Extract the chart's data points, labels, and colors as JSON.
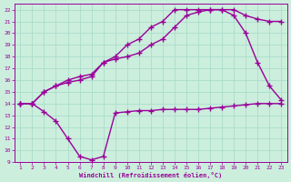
{
  "xlabel": "Windchill (Refroidissement éolien,°C)",
  "bg_color": "#cceedd",
  "line_color": "#990099",
  "grid_color": "#aaddcc",
  "xlim": [
    0.5,
    23.5
  ],
  "ylim": [
    9,
    22.5
  ],
  "xticks": [
    1,
    2,
    3,
    4,
    5,
    6,
    7,
    8,
    9,
    10,
    11,
    12,
    13,
    14,
    15,
    16,
    17,
    18,
    19,
    20,
    21,
    22,
    23
  ],
  "yticks": [
    9,
    10,
    11,
    12,
    13,
    14,
    15,
    16,
    17,
    18,
    19,
    20,
    21,
    22
  ],
  "line1_x": [
    1,
    2,
    3,
    4,
    5,
    6,
    7,
    8,
    9,
    10,
    11,
    12,
    13,
    14,
    15,
    16,
    17,
    18,
    19,
    20,
    21,
    22,
    23
  ],
  "line1_y": [
    14,
    14,
    13.3,
    12.5,
    11.0,
    9.5,
    9.2,
    9.5,
    13.2,
    13.3,
    13.4,
    13.4,
    13.5,
    13.5,
    13.5,
    13.5,
    13.6,
    13.7,
    13.8,
    13.9,
    14.0,
    14.0,
    14.0
  ],
  "line2_x": [
    1,
    2,
    3,
    4,
    5,
    6,
    7,
    8,
    9,
    10,
    11,
    12,
    13,
    14,
    15,
    16,
    17,
    18,
    19,
    20,
    21,
    22,
    23
  ],
  "line2_y": [
    14,
    14,
    15.0,
    15.5,
    15.8,
    16.0,
    16.3,
    17.5,
    17.8,
    18.0,
    18.3,
    19.0,
    19.5,
    20.5,
    21.5,
    21.8,
    22.0,
    22.0,
    22.0,
    21.5,
    21.2,
    21.0,
    21.0
  ],
  "line3_x": [
    1,
    2,
    3,
    4,
    5,
    6,
    7,
    8,
    9,
    10,
    11,
    12,
    13,
    14,
    15,
    16,
    17,
    18,
    19,
    20,
    21,
    22,
    23
  ],
  "line3_y": [
    14,
    14,
    15.0,
    15.5,
    16.0,
    16.3,
    16.5,
    17.5,
    18.0,
    19.0,
    19.5,
    20.5,
    21.0,
    22.0,
    22.0,
    22.0,
    22.0,
    22.0,
    21.5,
    20.0,
    17.5,
    15.5,
    14.3
  ],
  "marker": "+",
  "markersize": 4,
  "linewidth": 1.0
}
